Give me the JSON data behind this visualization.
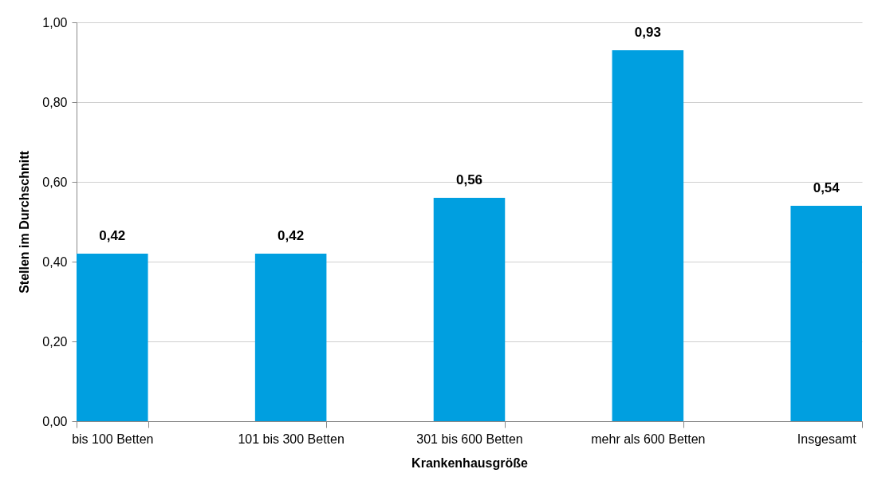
{
  "chart_data": {
    "type": "bar",
    "xlabel": "Krankenhausgröße",
    "ylabel": "Stellen im Durchschnitt",
    "categories": [
      "bis 100 Betten",
      "101 bis 300 Betten",
      "301 bis 600 Betten",
      "mehr als 600 Betten",
      "Insgesamt"
    ],
    "values": [
      0.42,
      0.42,
      0.56,
      0.93,
      0.54
    ],
    "value_labels": [
      "0,42",
      "0,42",
      "0,56",
      "0,93",
      "0,54"
    ],
    "color": "#009fe0",
    "ylim": [
      0,
      1
    ],
    "yticks": [
      {
        "value": 0,
        "label": "0,00"
      },
      {
        "value": 0.2,
        "label": "0,20"
      },
      {
        "value": 0.4,
        "label": "0,40"
      },
      {
        "value": 0.6,
        "label": "0,60"
      },
      {
        "value": 0.8,
        "label": "0,80"
      },
      {
        "value": 1,
        "label": "1,00"
      }
    ],
    "grid": "y"
  }
}
